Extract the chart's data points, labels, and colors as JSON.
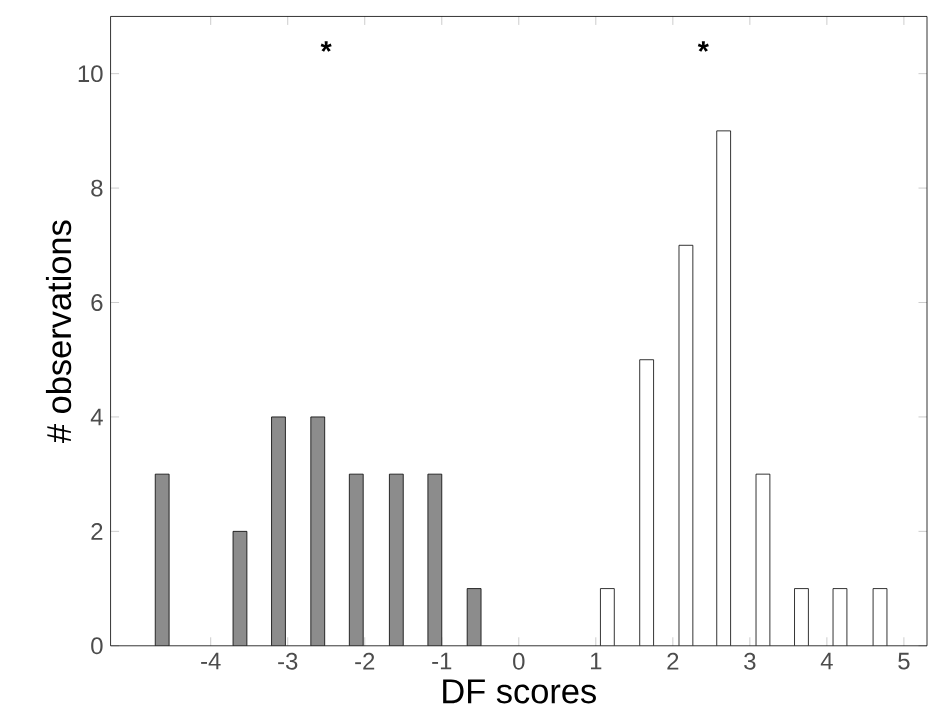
{
  "chart_data": {
    "type": "bar",
    "xlabel": "DF scores",
    "ylabel": "# observations",
    "xlim": [
      -5.3,
      5.3
    ],
    "xticks": [
      -4,
      -3,
      -2,
      -1,
      0,
      1,
      2,
      3,
      4,
      5
    ],
    "ylim": [
      0,
      11
    ],
    "yticks": [
      0,
      2,
      4,
      6,
      8,
      10
    ],
    "grid": false,
    "series": [
      {
        "color": "#8c8c8c",
        "x": [
          -4.63,
          -3.62,
          -3.12,
          -2.61,
          -2.11,
          -1.59,
          -1.09,
          -0.58
        ],
        "values": [
          3,
          2,
          4,
          4,
          3,
          3,
          3,
          1
        ]
      },
      {
        "color": "#ffffff",
        "x": [
          1.15,
          1.66,
          2.17,
          2.66,
          3.17,
          3.67,
          4.17,
          4.69
        ],
        "values": [
          1,
          5,
          7,
          9,
          3,
          1,
          1,
          1
        ]
      }
    ],
    "annotations": [
      "*",
      "*"
    ]
  }
}
